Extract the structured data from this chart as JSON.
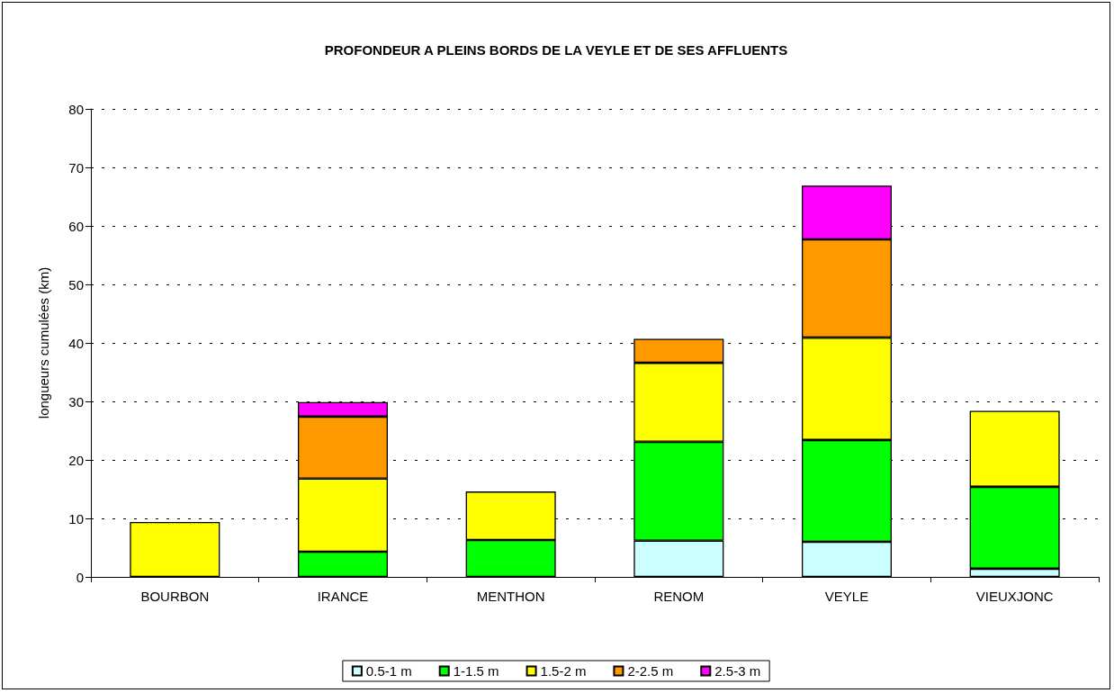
{
  "chart_data": {
    "type": "bar",
    "title": "PROFONDEUR A PLEINS BORDS DE LA VEYLE ET DE SES AFFLUENTS",
    "ylabel": "longueurs cumulées (km)",
    "categories": [
      "BOURBON",
      "IRANCE",
      "MENTHON",
      "RENOM",
      "VEYLE",
      "VIEUXJONC"
    ],
    "series": [
      {
        "name": "0.5-1 m",
        "color": "#ccffff",
        "values": [
          null,
          null,
          null,
          6.2,
          6.0,
          1.4
        ]
      },
      {
        "name": "1-1.5 m",
        "color": "#00ff00",
        "values": [
          null,
          4.3,
          6.3,
          16.9,
          17.4,
          14.0
        ]
      },
      {
        "name": "1.5-2 m",
        "color": "#ffff00",
        "values": [
          9.4,
          12.5,
          8.3,
          13.5,
          17.5,
          13.0
        ]
      },
      {
        "name": "2-2.5 m",
        "color": "#ff9900",
        "values": [
          null,
          10.6,
          null,
          4.1,
          16.8,
          null
        ]
      },
      {
        "name": "2.5-3 m",
        "color": "#ff00ff",
        "values": [
          null,
          2.5,
          null,
          null,
          9.2,
          null
        ]
      }
    ],
    "stacked": true,
    "ylim": [
      0,
      80
    ],
    "yticks": [
      0,
      10,
      20,
      30,
      40,
      50,
      60,
      70,
      80
    ],
    "grid": "y",
    "legend": "bottom"
  }
}
